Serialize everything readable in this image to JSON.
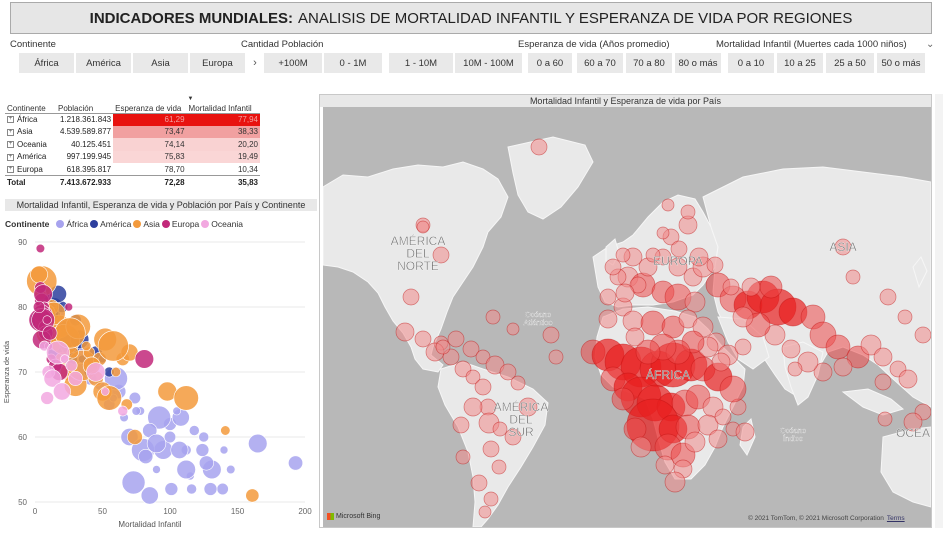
{
  "title": {
    "bold": "INDICADORES MUNDIALES:",
    "rest": "ANALISIS DE MORTALIDAD INFANTIL Y ESPERANZA DE VIDA POR REGIONES"
  },
  "slicers": {
    "continente": {
      "label": "Continente",
      "options": [
        "África",
        "América",
        "Asia",
        "Europa"
      ]
    },
    "poblacion": {
      "label": "Cantidad Población",
      "options": [
        "+100M",
        "0 - 1M",
        "1 - 10M",
        "10M - 100M"
      ]
    },
    "esperanza": {
      "label": "Esperanza de vida (Años promedio)",
      "options": [
        "0 a 60",
        "60 a 70",
        "70 a 80",
        "80 o más"
      ]
    },
    "mortalidad": {
      "label": "Mortalidad Infantil (Muertes cada 1000 niños)",
      "options": [
        "0 a 10",
        "10 a 25",
        "25 a 50",
        "50 o más"
      ]
    }
  },
  "table": {
    "headers": [
      "Continente",
      "Población",
      "Esperanza de vida",
      "Mortalidad Infantil"
    ],
    "rows": [
      {
        "continent": "África",
        "population": "1.218.361.843",
        "life": "61,29",
        "mort": "77,94",
        "color": "#e8120f",
        "textColor": "#f3a0a0"
      },
      {
        "continent": "Asia",
        "population": "4.539.589.877",
        "life": "73,47",
        "mort": "38,33",
        "color": "#f1a0a0",
        "textColor": "#333333"
      },
      {
        "continent": "Oceania",
        "population": "40.125.451",
        "life": "74,14",
        "mort": "20,20",
        "color": "#f9d2d2",
        "textColor": "#333333"
      },
      {
        "continent": "América",
        "population": "997.199.945",
        "life": "75,83",
        "mort": "19,49",
        "color": "#fad6d6",
        "textColor": "#333333"
      },
      {
        "continent": "Europa",
        "population": "618.395.817",
        "life": "78,70",
        "mort": "10,34",
        "color": "#ffffff",
        "textColor": "#333333"
      }
    ],
    "total": {
      "label": "Total",
      "population": "7.413.672.933",
      "life": "72,28",
      "mort": "35,83"
    }
  },
  "scatter_title": "Mortalidad Infantil, Esperanza de vida y Población por País y Continente",
  "map_title": "Mortalidad Infantil y Esperanza de vida por País",
  "legend": {
    "title": "Continente",
    "items": [
      {
        "name": "África",
        "color": "#a7a3ee"
      },
      {
        "name": "América",
        "color": "#2d3f9e"
      },
      {
        "name": "Asia",
        "color": "#f39a3c"
      },
      {
        "name": "Europa",
        "color": "#c2287a"
      },
      {
        "name": "Oceania",
        "color": "#f2a8e0"
      }
    ]
  },
  "chart_data": {
    "type": "scatter",
    "xlabel": "Mortalidad Infantil",
    "ylabel": "Esperanza de vida",
    "xlim": [
      0,
      200
    ],
    "ylim": [
      50,
      90
    ],
    "xticks": [
      0,
      50,
      100,
      150,
      200
    ],
    "yticks": [
      50,
      60,
      70,
      80,
      90
    ],
    "series": [
      {
        "name": "África",
        "color": "#a7a3ee",
        "points": [
          [
            193,
            56
          ],
          [
            131,
            55
          ],
          [
            115,
            54
          ],
          [
            116,
            52
          ],
          [
            101,
            52
          ],
          [
            85,
            51
          ],
          [
            73,
            53
          ],
          [
            145,
            55
          ],
          [
            139,
            52
          ],
          [
            127,
            56
          ],
          [
            165,
            59
          ],
          [
            140,
            58
          ],
          [
            118,
            61
          ],
          [
            100,
            62
          ],
          [
            108,
            63
          ],
          [
            92,
            63
          ],
          [
            78,
            64
          ],
          [
            74,
            66
          ],
          [
            62,
            67
          ],
          [
            95,
            58
          ],
          [
            90,
            55
          ],
          [
            112,
            58
          ],
          [
            124,
            58
          ],
          [
            70,
            60
          ],
          [
            80,
            58
          ],
          [
            66,
            63
          ],
          [
            55,
            65
          ],
          [
            85,
            61
          ],
          [
            90,
            59
          ],
          [
            58,
            66
          ],
          [
            48,
            68
          ],
          [
            41,
            69
          ],
          [
            34,
            70
          ],
          [
            30,
            73
          ],
          [
            25,
            75
          ],
          [
            20,
            76
          ],
          [
            35,
            74
          ],
          [
            45,
            72
          ],
          [
            28,
            78
          ],
          [
            18,
            79
          ],
          [
            15,
            80
          ],
          [
            12,
            78
          ],
          [
            60,
            69
          ],
          [
            75,
            64
          ],
          [
            100,
            60
          ],
          [
            82,
            57
          ],
          [
            112,
            55
          ],
          [
            105,
            64
          ],
          [
            125,
            60
          ],
          [
            130,
            52
          ],
          [
            107,
            58
          ]
        ]
      },
      {
        "name": "América",
        "color": "#2d3f9e",
        "points": [
          [
            5,
            78
          ],
          [
            8,
            81
          ],
          [
            10,
            80
          ],
          [
            12,
            77
          ],
          [
            14,
            80
          ],
          [
            16,
            79
          ],
          [
            18,
            76
          ],
          [
            20,
            77
          ],
          [
            22,
            75
          ],
          [
            25,
            74
          ],
          [
            28,
            76
          ],
          [
            30,
            78
          ],
          [
            15,
            73
          ],
          [
            10,
            75
          ],
          [
            35,
            72
          ],
          [
            40,
            70
          ],
          [
            45,
            73
          ],
          [
            6,
            82
          ],
          [
            9,
            79
          ],
          [
            3,
            77
          ],
          [
            20,
            80
          ],
          [
            26,
            72
          ],
          [
            33,
            75
          ],
          [
            50,
            72
          ],
          [
            55,
            70
          ],
          [
            13,
            79
          ],
          [
            17,
            82
          ]
        ]
      },
      {
        "name": "Asia",
        "color": "#f39a3c",
        "points": [
          [
            5,
            84
          ],
          [
            4,
            82
          ],
          [
            6,
            80
          ],
          [
            7,
            78
          ],
          [
            10,
            76
          ],
          [
            15,
            74
          ],
          [
            20,
            72
          ],
          [
            25,
            70
          ],
          [
            30,
            68
          ],
          [
            35,
            71
          ],
          [
            40,
            73
          ],
          [
            45,
            69
          ],
          [
            50,
            67
          ],
          [
            55,
            66
          ],
          [
            60,
            70
          ],
          [
            65,
            72
          ],
          [
            70,
            73
          ],
          [
            18,
            77
          ],
          [
            22,
            75
          ],
          [
            28,
            73
          ],
          [
            12,
            80
          ],
          [
            8,
            79
          ],
          [
            32,
            77
          ],
          [
            38,
            74
          ],
          [
            48,
            72
          ],
          [
            42,
            71
          ],
          [
            52,
            75
          ],
          [
            58,
            74
          ],
          [
            68,
            65
          ],
          [
            74,
            60
          ],
          [
            98,
            67
          ],
          [
            112,
            66
          ],
          [
            141,
            61
          ],
          [
            161,
            51
          ],
          [
            3,
            85
          ],
          [
            14,
            79
          ],
          [
            26,
            76
          ]
        ]
      },
      {
        "name": "Europa",
        "color": "#c2287a",
        "points": [
          [
            4,
            89
          ],
          [
            4,
            83
          ],
          [
            5,
            81
          ],
          [
            6,
            82
          ],
          [
            6,
            80
          ],
          [
            7,
            80
          ],
          [
            8,
            79
          ],
          [
            5,
            79
          ],
          [
            4,
            78
          ],
          [
            6,
            77
          ],
          [
            7,
            77
          ],
          [
            8,
            76
          ],
          [
            5,
            75
          ],
          [
            10,
            74
          ],
          [
            12,
            72
          ],
          [
            15,
            71
          ],
          [
            18,
            70
          ],
          [
            6,
            78
          ],
          [
            9,
            78
          ],
          [
            3,
            80
          ],
          [
            11,
            76
          ],
          [
            81,
            72
          ],
          [
            25,
            80
          ]
        ]
      },
      {
        "name": "Oceania",
        "color": "#f2a8e0",
        "points": [
          [
            7,
            74
          ],
          [
            10,
            70
          ],
          [
            13,
            69
          ],
          [
            17,
            73
          ],
          [
            22,
            72
          ],
          [
            27,
            71
          ],
          [
            30,
            69
          ],
          [
            45,
            70
          ],
          [
            52,
            67
          ],
          [
            65,
            64
          ],
          [
            9,
            66
          ],
          [
            20,
            67
          ]
        ]
      }
    ],
    "bubbleSizes": [
      16,
      13,
      12,
      10,
      9,
      8,
      7,
      6,
      5
    ]
  },
  "map": {
    "labels": [
      "AMÉRICA DEL NORTE",
      "EUROPA",
      "ASIA",
      "Océano Atlántico",
      "ÁFRICA",
      "AMÉRICA DEL SUR",
      "Océano Índico",
      "OCEA"
    ],
    "footer_bing": "Microsoft Bing",
    "footer_copy": "© 2021 TomTom, © 2021 Microsoft Corporation",
    "footer_terms": "Terms"
  }
}
